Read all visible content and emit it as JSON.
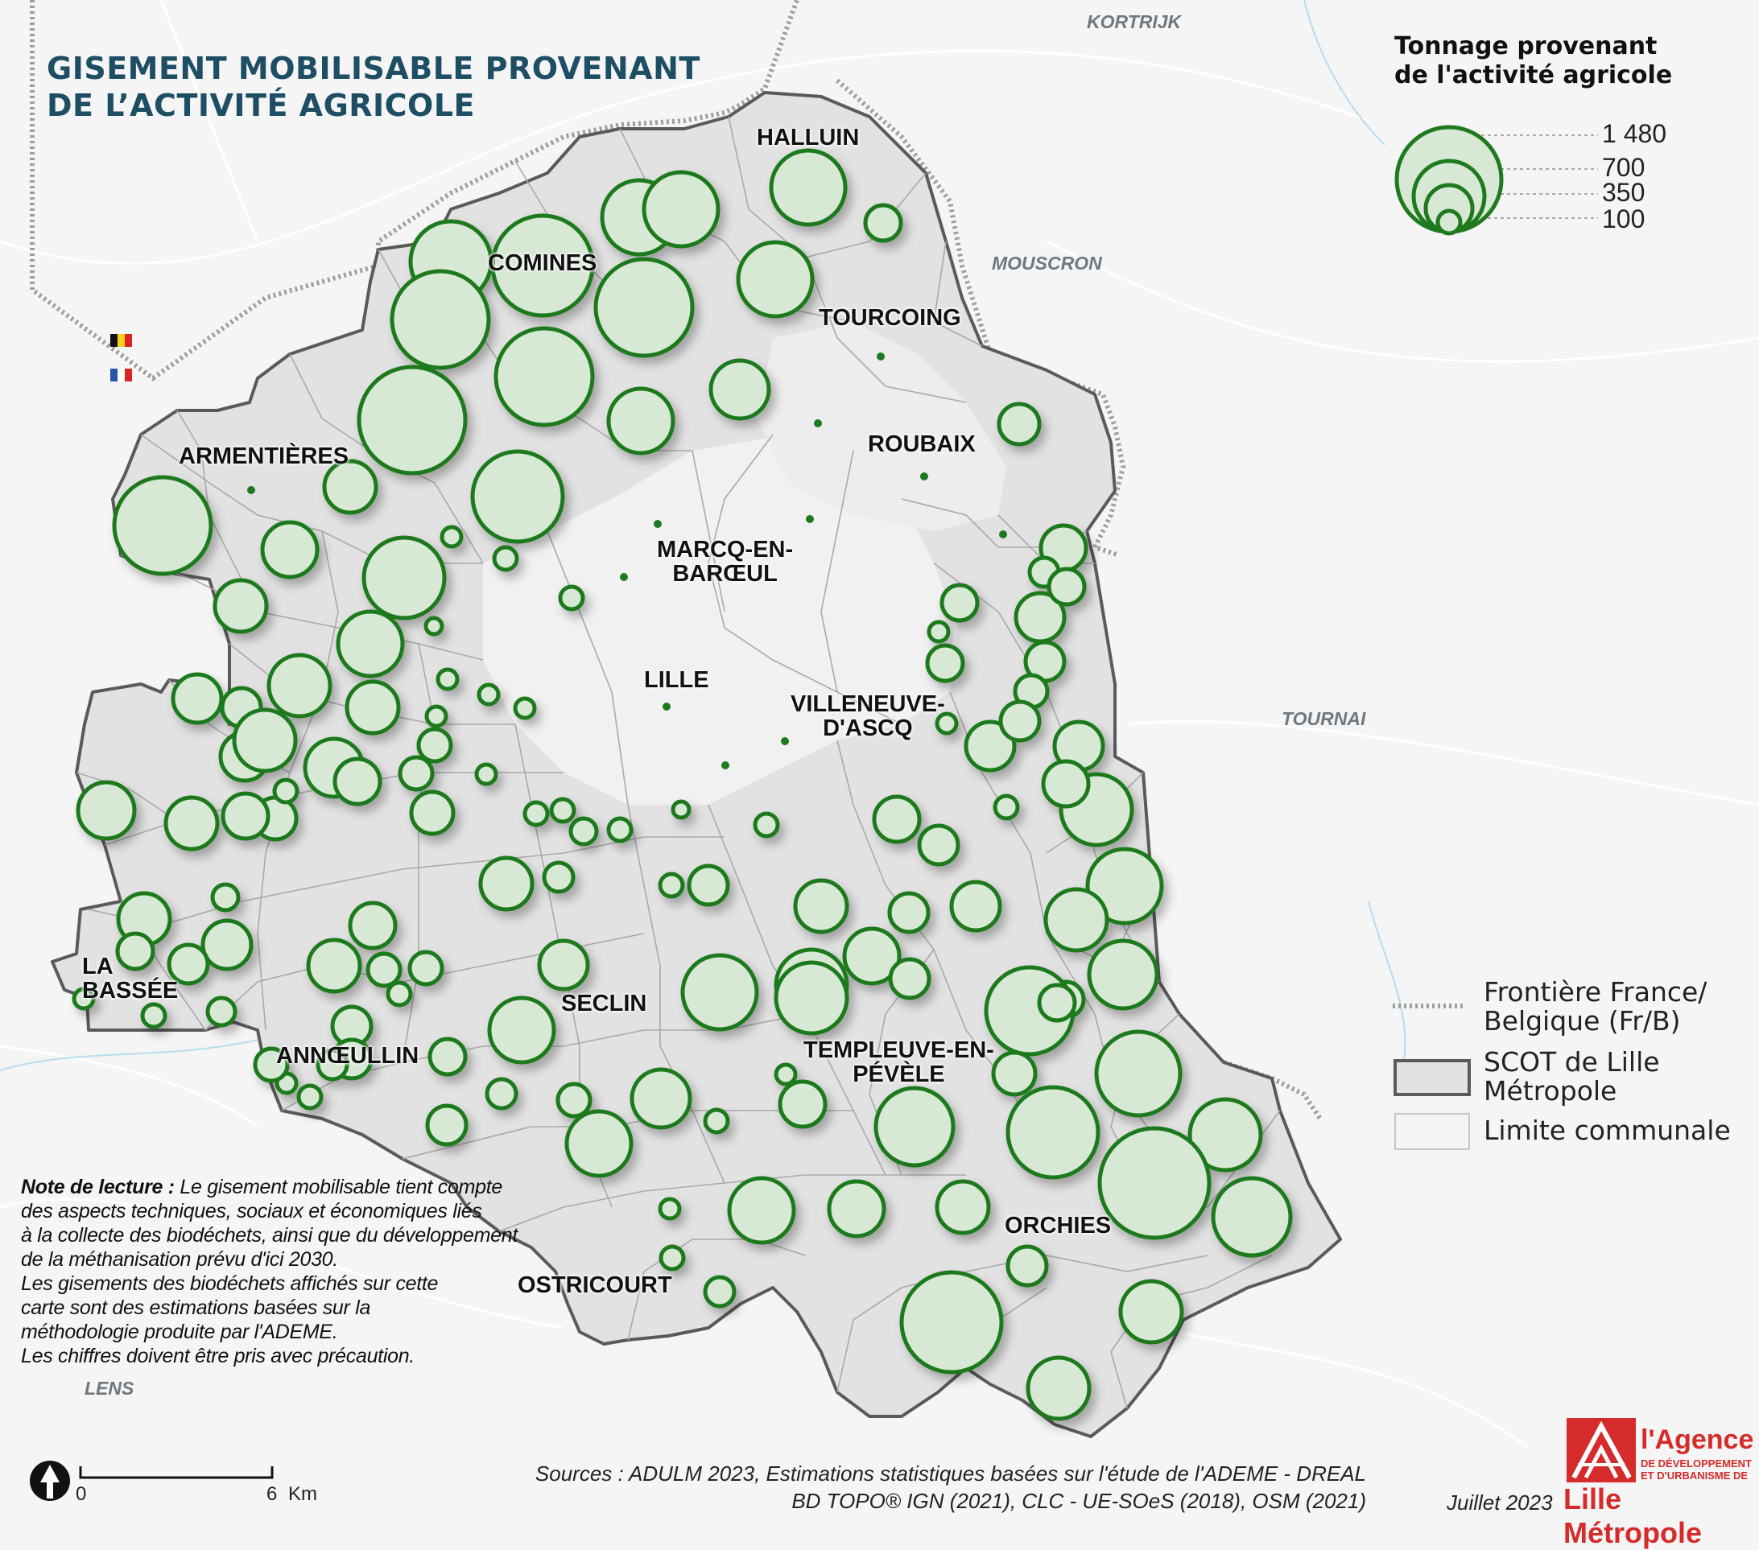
{
  "title": {
    "line1": "GISEMENT MOBILISABLE PROVENANT",
    "line2": "DE L’ACTIVITÉ AGRICOLE"
  },
  "legend": {
    "size_title_line1": "Tonnage provenant",
    "size_title_line2": "de l'activité agricole",
    "size_ticks": [
      "1 480",
      "700",
      "350",
      "100"
    ],
    "frontier_label_1": "Frontière France/",
    "frontier_label_2": "Belgique (Fr/B)",
    "scot_label_1": "SCOT de Lille",
    "scot_label_2": "Métropole",
    "communal_label": "Limite communale",
    "colors": {
      "circle_fill": "#d7e8d4",
      "circle_stroke": "#1f7a1f",
      "scot_border": "#555555"
    }
  },
  "cities_fr": {
    "halluin": "HALLUIN",
    "comines": "COMINES",
    "tourcoing": "TOURCOING",
    "roubaix": "ROUBAIX",
    "armentieres": "ARMENTIÈRES",
    "marcq_1": "MARCQ-EN-",
    "marcq_2": "BARŒUL",
    "lille": "LILLE",
    "villeneuve_1": "VILLENEUVE-",
    "villeneuve_2": "D'ASCQ",
    "la_bassee_1": "LA",
    "la_bassee_2": "BASSÉE",
    "seclin": "SECLIN",
    "annoeullin": "ANNŒULLIN",
    "templeuve_1": "TEMPLEUVE-EN-",
    "templeuve_2": "PÉVÈLE",
    "orchies": "ORCHIES",
    "ostricourt": "OSTRICOURT"
  },
  "cities_be": {
    "kortrijk": "KORTRIJK",
    "mouscron": "MOUSCRON",
    "tournai": "TOURNAI",
    "lens": "LENS"
  },
  "note": {
    "lead": "Note de lecture :",
    "l1": " Le gisement mobilisable tient compte",
    "l2": "des aspects techniques, sociaux et économiques liés",
    "l3": "à la collecte des biodéchets, ainsi que du développement",
    "l4": "de la méthanisation prévu d'ici 2030.",
    "l5": "Les gisements des biodéchets affichés sur cette",
    "l6": "carte sont des estimations basées sur la",
    "l7": "méthodologie produite par l'ADEME.",
    "l8": "Les chiffres doivent être pris avec précaution."
  },
  "sources": {
    "line1": "Sources : ADULM 2023, Estimations statistiques basées sur l'étude de l'ADEME - DREAL",
    "line2": "BD TOPO® IGN (2021), CLC - UE-SOeS (2018), OSM (2021)"
  },
  "date": "Juillet 2023",
  "logo": {
    "line1": "l'Agence",
    "line2a": "DE DÉVELOPPEMENT",
    "line2b": "ET D'URBANISME DE",
    "line3": "Lille Métropole"
  },
  "scale": {
    "zero": "0",
    "end": "6",
    "unit": "Km"
  }
}
